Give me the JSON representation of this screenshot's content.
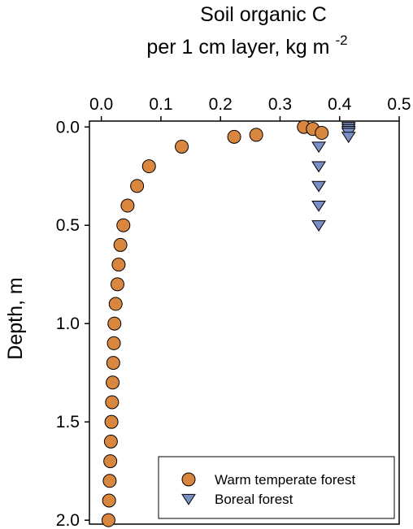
{
  "chart_data": {
    "type": "scatter",
    "title_line1": "Soil organic C",
    "title_line2_main": "per 1 cm layer, kg m",
    "title_line2_sup": "-2",
    "ylabel": "Depth, m",
    "xlabel": "",
    "x_axis_position": "top",
    "y_inverted": true,
    "xlim": [
      -0.02,
      0.5
    ],
    "ylim": [
      2.02,
      -0.03
    ],
    "x_ticks": [
      0.0,
      0.1,
      0.2,
      0.3,
      0.4,
      0.5
    ],
    "x_tick_labels": [
      "0.0",
      "0.1",
      "0.2",
      "0.3",
      "0.4",
      "0.5"
    ],
    "y_ticks": [
      0.0,
      0.5,
      1.0,
      1.5,
      2.0
    ],
    "y_tick_labels": [
      "0.0",
      "0.5",
      "1.0",
      "1.5",
      "2.0"
    ],
    "grid": false,
    "legend_position": "bottom-right",
    "colors": {
      "warm_fill": "#d9873f",
      "boreal_fill": "#7b8fc7",
      "marker_stroke": "#000000"
    },
    "series": [
      {
        "name": "Warm temperate forest",
        "marker": "circle",
        "points": [
          {
            "x": 0.34,
            "y": 0.0
          },
          {
            "x": 0.355,
            "y": 0.01
          },
          {
            "x": 0.37,
            "y": 0.03
          },
          {
            "x": 0.26,
            "y": 0.04
          },
          {
            "x": 0.223,
            "y": 0.05
          },
          {
            "x": 0.135,
            "y": 0.1
          },
          {
            "x": 0.08,
            "y": 0.2
          },
          {
            "x": 0.06,
            "y": 0.3
          },
          {
            "x": 0.044,
            "y": 0.4
          },
          {
            "x": 0.037,
            "y": 0.5
          },
          {
            "x": 0.032,
            "y": 0.6
          },
          {
            "x": 0.029,
            "y": 0.7
          },
          {
            "x": 0.027,
            "y": 0.8
          },
          {
            "x": 0.024,
            "y": 0.9
          },
          {
            "x": 0.022,
            "y": 1.0
          },
          {
            "x": 0.021,
            "y": 1.1
          },
          {
            "x": 0.02,
            "y": 1.2
          },
          {
            "x": 0.019,
            "y": 1.3
          },
          {
            "x": 0.018,
            "y": 1.4
          },
          {
            "x": 0.017,
            "y": 1.5
          },
          {
            "x": 0.016,
            "y": 1.6
          },
          {
            "x": 0.015,
            "y": 1.7
          },
          {
            "x": 0.014,
            "y": 1.8
          },
          {
            "x": 0.013,
            "y": 1.9
          },
          {
            "x": 0.012,
            "y": 2.0
          }
        ]
      },
      {
        "name": "Boreal forest",
        "marker": "triangle-down",
        "points": [
          {
            "x": 0.415,
            "y": 0.0
          },
          {
            "x": 0.415,
            "y": 0.01
          },
          {
            "x": 0.415,
            "y": 0.02
          },
          {
            "x": 0.415,
            "y": 0.03
          },
          {
            "x": 0.415,
            "y": 0.05
          },
          {
            "x": 0.365,
            "y": 0.1
          },
          {
            "x": 0.365,
            "y": 0.2
          },
          {
            "x": 0.365,
            "y": 0.3
          },
          {
            "x": 0.365,
            "y": 0.4
          },
          {
            "x": 0.365,
            "y": 0.5
          }
        ]
      }
    ]
  }
}
